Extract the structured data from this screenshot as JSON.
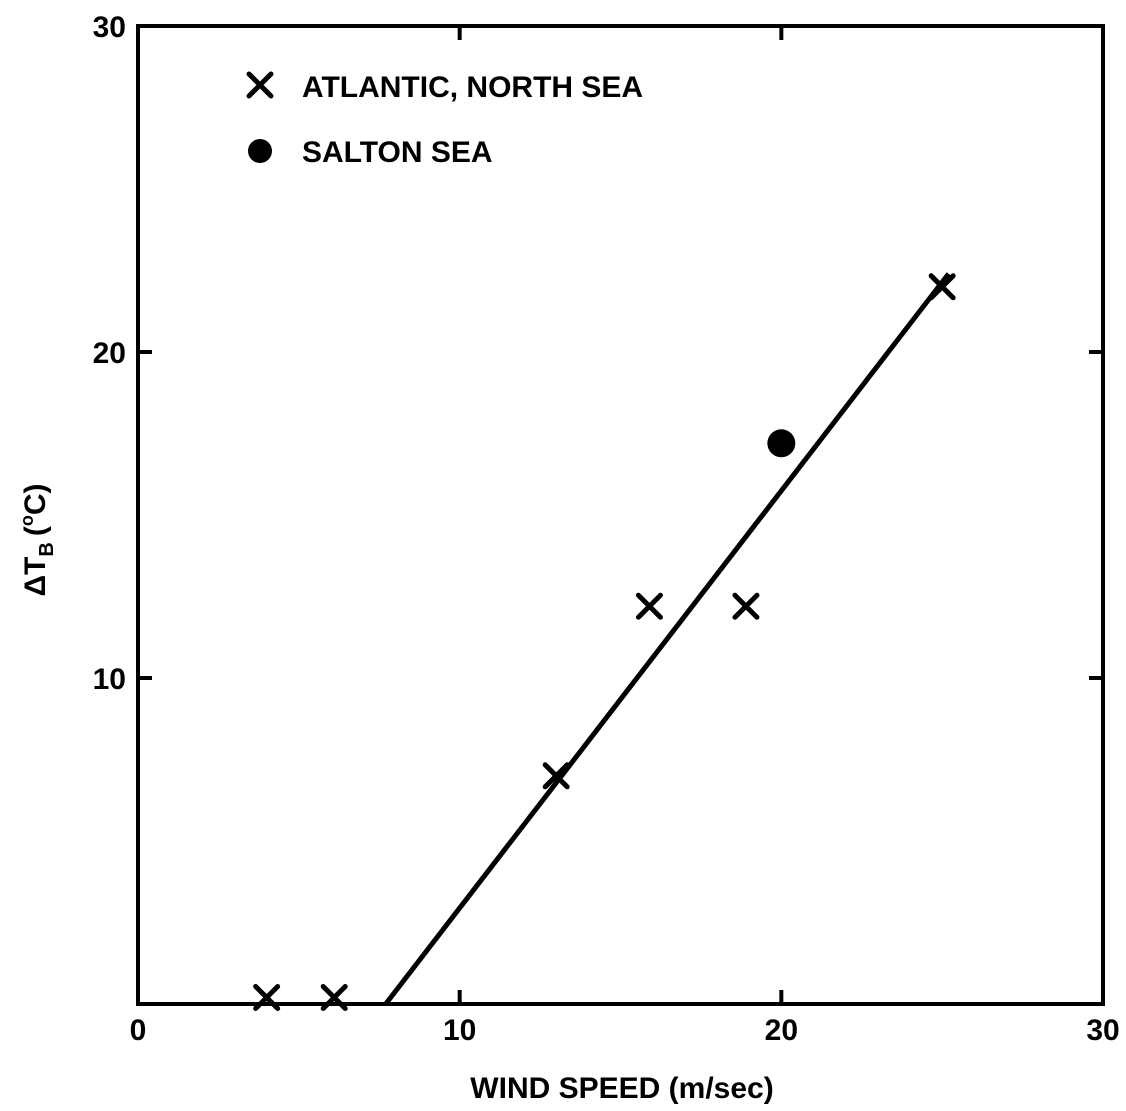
{
  "chart_data": {
    "type": "scatter",
    "xlabel": "WIND SPEED (m/sec)",
    "ylabel": {
      "delta": "Δ",
      "t": "T",
      "sub": "B",
      "deg": "o",
      "unit": "C",
      "paren_open": "(",
      "paren_close": ")"
    },
    "xlim": [
      0,
      30
    ],
    "ylim": [
      0,
      30
    ],
    "x_ticks": [
      0,
      10,
      20,
      30
    ],
    "y_ticks": [
      0,
      10,
      20,
      30
    ],
    "x_tick_labels": [
      "0",
      "10",
      "20",
      "30"
    ],
    "y_tick_labels": [
      "10",
      "20",
      "30"
    ],
    "grid": false,
    "legend_position": "top-left",
    "series": [
      {
        "name": "ATLANTIC, NORTH SEA",
        "marker": "x",
        "points": [
          [
            4,
            0.2
          ],
          [
            6.1,
            0.2
          ],
          [
            13,
            7
          ],
          [
            15.9,
            12.2
          ],
          [
            18.9,
            12.2
          ],
          [
            25,
            22
          ]
        ]
      },
      {
        "name": "SALTON SEA",
        "marker": "circle",
        "points": [
          [
            20,
            17.2
          ]
        ]
      }
    ],
    "fit_line": {
      "x": [
        7.7,
        25.2
      ],
      "y": [
        0,
        22.4
      ]
    }
  },
  "colors": {
    "ink": "#000000",
    "background": "#ffffff"
  }
}
